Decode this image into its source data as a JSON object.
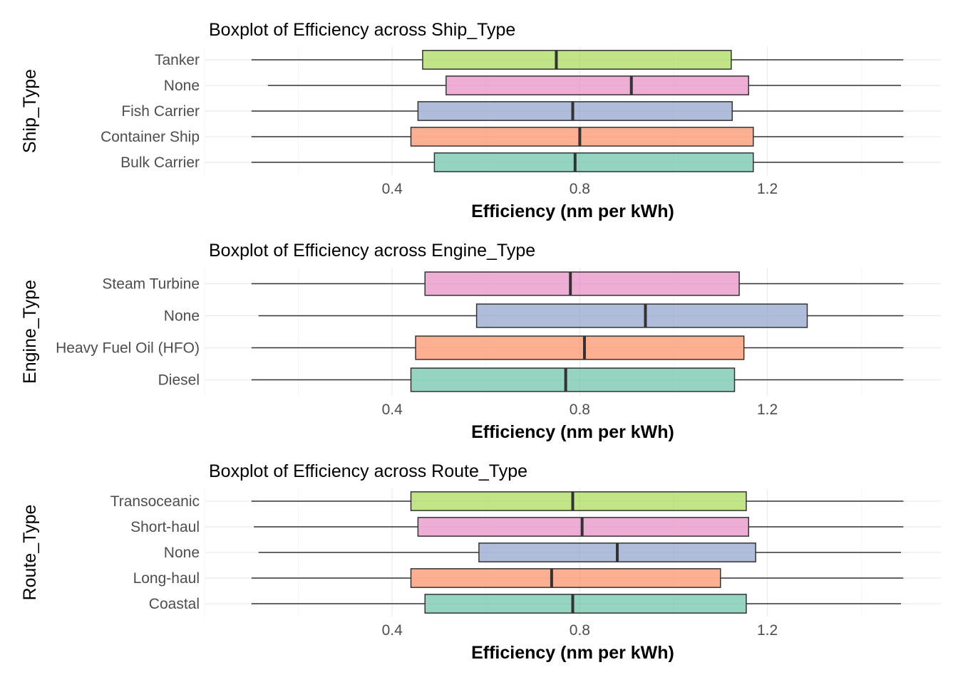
{
  "chart_data": [
    {
      "type": "boxplot",
      "title": "Boxplot of Efficiency across Ship_Type",
      "xlabel": "Efficiency (nm per kWh)",
      "ylabel": "Ship_Type",
      "xlim": [
        0.0,
        1.57
      ],
      "xticks": [
        0.4,
        0.8,
        1.2
      ],
      "xtick_labels": [
        "0.4",
        "0.8",
        "1.2"
      ],
      "grid": true,
      "categories": [
        "Bulk Carrier",
        "Container Ship",
        "Fish Carrier",
        "None",
        "Tanker"
      ],
      "series": [
        {
          "category": "Bulk Carrier",
          "min": 0.1,
          "q1": 0.49,
          "median": 0.79,
          "q3": 1.17,
          "max": 1.49,
          "color": "#66c2a5"
        },
        {
          "category": "Container Ship",
          "min": 0.1,
          "q1": 0.44,
          "median": 0.8,
          "q3": 1.17,
          "max": 1.49,
          "color": "#fc8d62"
        },
        {
          "category": "Fish Carrier",
          "min": 0.1,
          "q1": 0.455,
          "median": 0.785,
          "q3": 1.125,
          "max": 1.49,
          "color": "#8da0cb"
        },
        {
          "category": "None",
          "min": 0.135,
          "q1": 0.515,
          "median": 0.91,
          "q3": 1.16,
          "max": 1.485,
          "color": "#e78ac3"
        },
        {
          "category": "Tanker",
          "min": 0.1,
          "q1": 0.465,
          "median": 0.75,
          "q3": 1.123,
          "max": 1.49,
          "color": "#a6d854"
        }
      ]
    },
    {
      "type": "boxplot",
      "title": "Boxplot of Efficiency across Engine_Type",
      "xlabel": "Efficiency (nm per kWh)",
      "ylabel": "Engine_Type",
      "xlim": [
        0.0,
        1.57
      ],
      "xticks": [
        0.4,
        0.8,
        1.2
      ],
      "xtick_labels": [
        "0.4",
        "0.8",
        "1.2"
      ],
      "grid": true,
      "categories": [
        "Diesel",
        "Heavy Fuel Oil (HFO)",
        "None",
        "Steam Turbine"
      ],
      "series": [
        {
          "category": "Diesel",
          "min": 0.1,
          "q1": 0.44,
          "median": 0.77,
          "q3": 1.13,
          "max": 1.49,
          "color": "#66c2a5"
        },
        {
          "category": "Heavy Fuel Oil (HFO)",
          "min": 0.1,
          "q1": 0.45,
          "median": 0.81,
          "q3": 1.15,
          "max": 1.49,
          "color": "#fc8d62"
        },
        {
          "category": "None",
          "min": 0.115,
          "q1": 0.58,
          "median": 0.94,
          "q3": 1.285,
          "max": 1.49,
          "color": "#8da0cb"
        },
        {
          "category": "Steam Turbine",
          "min": 0.1,
          "q1": 0.47,
          "median": 0.78,
          "q3": 1.14,
          "max": 1.49,
          "color": "#e78ac3"
        }
      ]
    },
    {
      "type": "boxplot",
      "title": "Boxplot of Efficiency across Route_Type",
      "xlabel": "Efficiency (nm per kWh)",
      "ylabel": "Route_Type",
      "xlim": [
        0.0,
        1.57
      ],
      "xticks": [
        0.4,
        0.8,
        1.2
      ],
      "xtick_labels": [
        "0.4",
        "0.8",
        "1.2"
      ],
      "grid": true,
      "categories": [
        "Coastal",
        "Long-haul",
        "None",
        "Short-haul",
        "Transoceanic"
      ],
      "series": [
        {
          "category": "Coastal",
          "min": 0.1,
          "q1": 0.47,
          "median": 0.785,
          "q3": 1.155,
          "max": 1.485,
          "color": "#66c2a5"
        },
        {
          "category": "Long-haul",
          "min": 0.1,
          "q1": 0.44,
          "median": 0.74,
          "q3": 1.1,
          "max": 1.49,
          "color": "#fc8d62"
        },
        {
          "category": "None",
          "min": 0.115,
          "q1": 0.585,
          "median": 0.88,
          "q3": 1.175,
          "max": 1.485,
          "color": "#8da0cb"
        },
        {
          "category": "Short-haul",
          "min": 0.105,
          "q1": 0.455,
          "median": 0.805,
          "q3": 1.16,
          "max": 1.49,
          "color": "#e78ac3"
        },
        {
          "category": "Transoceanic",
          "min": 0.1,
          "q1": 0.44,
          "median": 0.785,
          "q3": 1.155,
          "max": 1.49,
          "color": "#a6d854"
        }
      ]
    }
  ]
}
